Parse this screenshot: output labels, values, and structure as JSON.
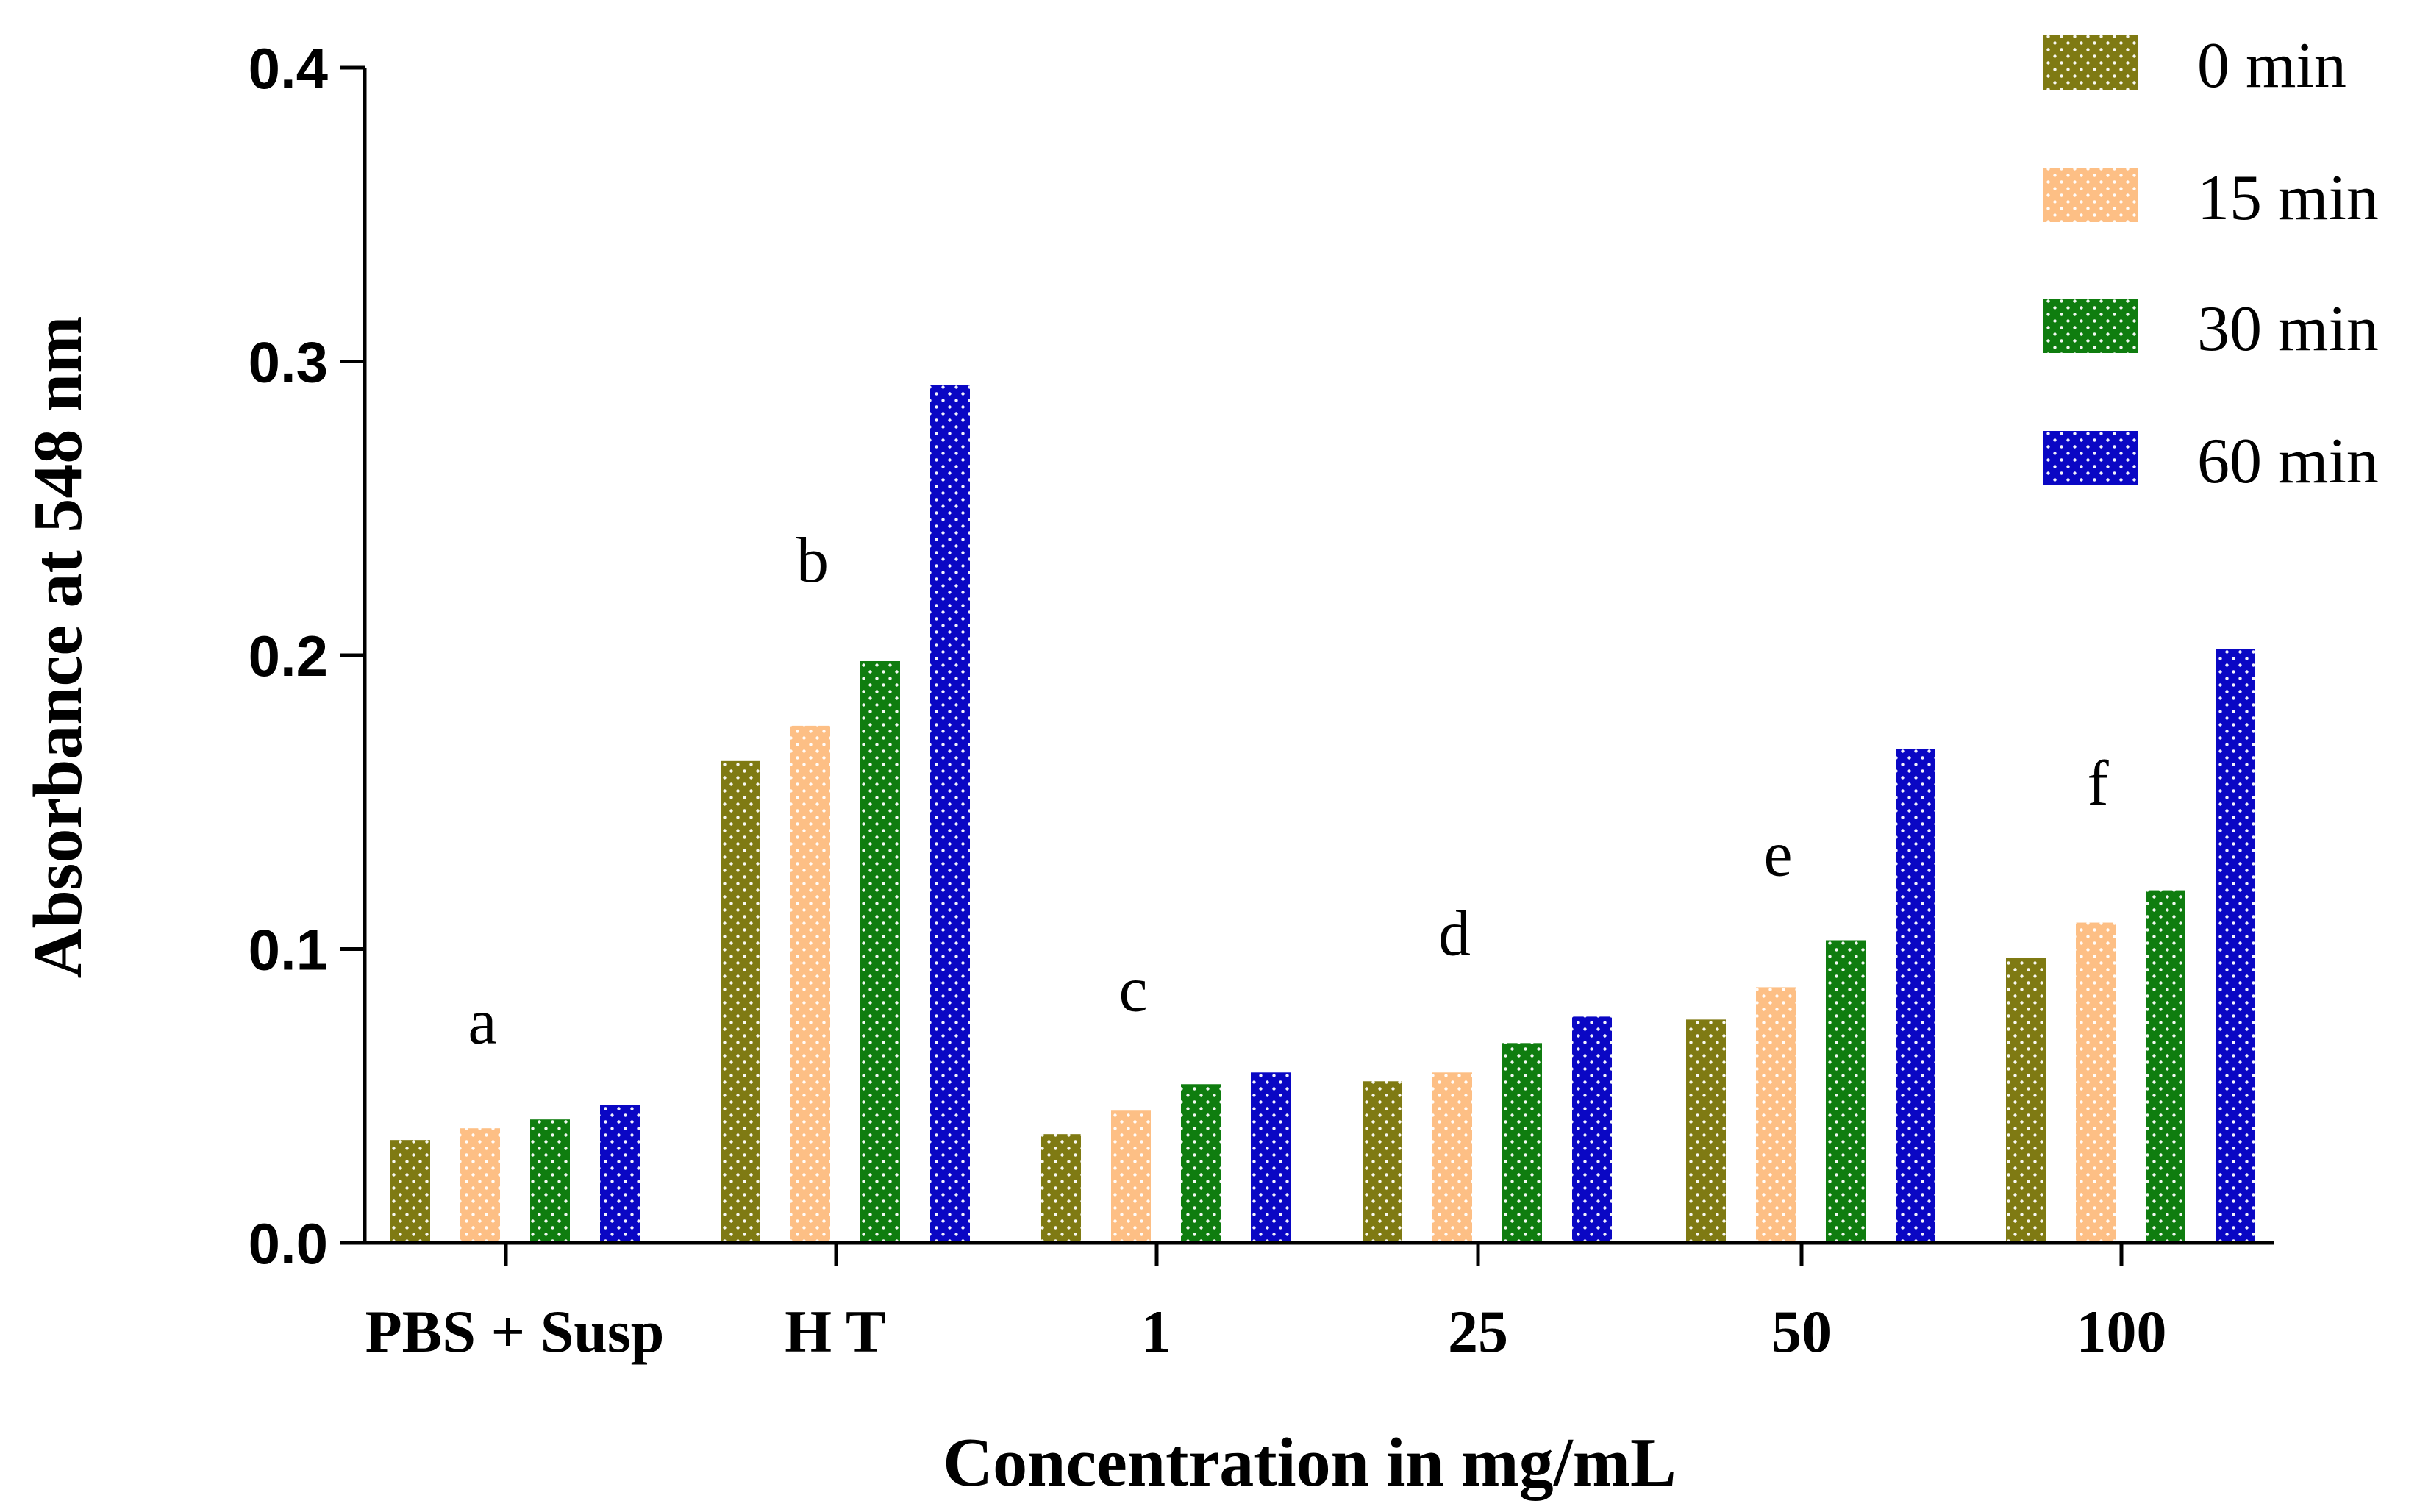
{
  "chart_data": {
    "type": "bar",
    "title": "",
    "xlabel": "Concentration in mg/mL",
    "ylabel": "Absorbance at 548 nm",
    "ylim": [
      0,
      0.4
    ],
    "yticks": [
      0.0,
      0.1,
      0.2,
      0.3,
      0.4
    ],
    "ytick_labels": [
      "0.0",
      "0.1",
      "0.2",
      "0.3",
      "0.4"
    ],
    "grid": false,
    "legend_position": "top-right",
    "categories": [
      "PBS + Susp",
      "H T",
      "1",
      "25",
      "50",
      "100"
    ],
    "series": [
      {
        "name": "0 min",
        "color": "#7f7a13",
        "values": [
          0.035,
          0.164,
          0.037,
          0.055,
          0.076,
          0.097
        ]
      },
      {
        "name": "15 min",
        "color": "#fdbf85",
        "values": [
          0.039,
          0.176,
          0.045,
          0.058,
          0.087,
          0.109
        ]
      },
      {
        "name": "30 min",
        "color": "#0f7d0f",
        "values": [
          0.042,
          0.198,
          0.054,
          0.068,
          0.103,
          0.12
        ]
      },
      {
        "name": "60 min",
        "color": "#0a07c4",
        "values": [
          0.047,
          0.292,
          0.058,
          0.077,
          0.168,
          0.202
        ]
      }
    ],
    "annotations": [
      {
        "text": "a",
        "category": "PBS + Susp",
        "y": 0.068
      },
      {
        "text": "b",
        "category": "H T",
        "y": 0.225
      },
      {
        "text": "c",
        "category": "1",
        "y": 0.079
      },
      {
        "text": "d",
        "category": "25",
        "y": 0.098
      },
      {
        "text": "e",
        "category": "50",
        "y": 0.125
      },
      {
        "text": "f",
        "category": "100",
        "y": 0.149
      }
    ]
  }
}
